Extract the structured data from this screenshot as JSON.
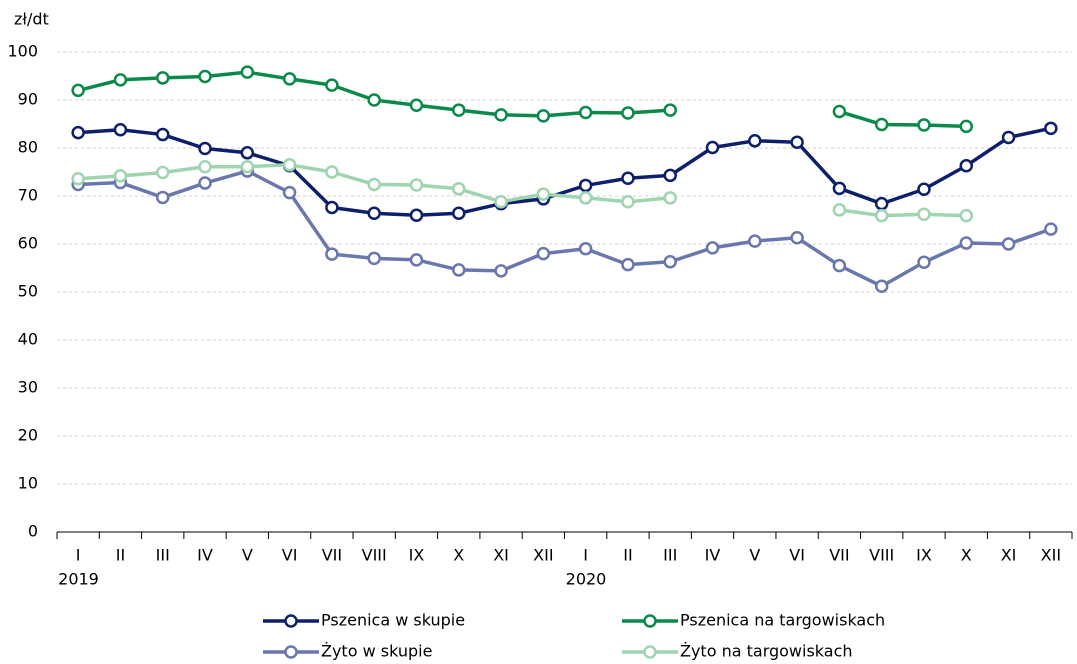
{
  "chart_data": {
    "type": "line",
    "y_unit": "zł/dt",
    "categories": [
      "I",
      "II",
      "III",
      "IV",
      "V",
      "VI",
      "VII",
      "VIII",
      "IX",
      "X",
      "XI",
      "XII",
      "I",
      "II",
      "III",
      "IV",
      "V",
      "VI",
      "VII",
      "VIII",
      "IX",
      "X",
      "XI",
      "XII"
    ],
    "x_years": [
      "2019",
      null,
      null,
      null,
      null,
      null,
      null,
      null,
      null,
      null,
      null,
      null,
      "2020",
      null,
      null,
      null,
      null,
      null,
      null,
      null,
      null,
      null,
      null,
      null
    ],
    "ylim": [
      0,
      100
    ],
    "yticks": [
      0,
      10,
      20,
      30,
      40,
      50,
      60,
      70,
      80,
      90,
      100
    ],
    "grid": true,
    "legend": "bottom",
    "series": [
      {
        "name": "Pszenica w skupie",
        "color": "#0d1f6b",
        "values": [
          83.2,
          83.8,
          82.8,
          79.9,
          79.0,
          76.3,
          67.6,
          66.4,
          66.0,
          66.4,
          68.4,
          69.4,
          72.2,
          73.7,
          74.3,
          80.1,
          81.5,
          81.2,
          71.6,
          68.4,
          71.4,
          76.3,
          82.2,
          84.1
        ]
      },
      {
        "name": "Pszenica na targowiskach",
        "color": "#0a8a4a",
        "values": [
          92.0,
          94.2,
          94.6,
          94.9,
          95.8,
          94.4,
          93.1,
          90.0,
          88.9,
          87.9,
          86.9,
          86.7,
          87.4,
          87.3,
          87.9,
          null,
          null,
          null,
          87.6,
          84.9,
          84.8,
          84.5,
          null,
          null
        ]
      },
      {
        "name": "Żyto w skupie",
        "color": "#6a77ad",
        "values": [
          72.4,
          72.8,
          69.7,
          72.7,
          75.2,
          70.7,
          57.9,
          57.0,
          56.7,
          54.6,
          54.4,
          58.0,
          59.0,
          55.7,
          56.3,
          59.2,
          60.6,
          61.3,
          55.5,
          51.2,
          56.2,
          60.2,
          60.0,
          63.1
        ]
      },
      {
        "name": "Żyto na targowiskach",
        "color": "#9fd4b0",
        "values": [
          73.6,
          74.2,
          74.9,
          76.1,
          76.1,
          76.5,
          75.0,
          72.4,
          72.3,
          71.5,
          68.8,
          70.4,
          69.6,
          68.8,
          69.6,
          null,
          null,
          null,
          67.1,
          65.9,
          66.2,
          65.9,
          null,
          null
        ]
      }
    ]
  }
}
